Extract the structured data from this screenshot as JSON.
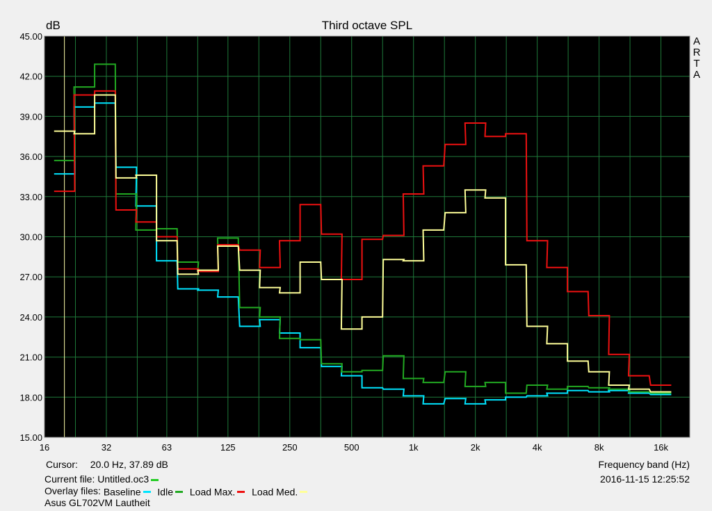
{
  "chart_data": {
    "type": "line",
    "title": "Third octave SPL",
    "ylabel": "dB",
    "xlabel": "Frequency band (Hz)",
    "ylim": [
      15,
      45
    ],
    "yticks": [
      "15.00",
      "18.00",
      "21.00",
      "24.00",
      "27.00",
      "30.00",
      "33.00",
      "36.00",
      "39.00",
      "42.00",
      "45.00"
    ],
    "xticks": [
      {
        "label": "16",
        "hz": 16
      },
      {
        "label": "32",
        "hz": 32
      },
      {
        "label": "63",
        "hz": 63
      },
      {
        "label": "125",
        "hz": 125
      },
      {
        "label": "250",
        "hz": 250
      },
      {
        "label": "500",
        "hz": 500
      },
      {
        "label": "1k",
        "hz": 1000
      },
      {
        "label": "2k",
        "hz": 2000
      },
      {
        "label": "4k",
        "hz": 4000
      },
      {
        "label": "8k",
        "hz": 8000
      },
      {
        "label": "16k",
        "hz": 16000
      }
    ],
    "grid": true,
    "x_scale": "log",
    "bands_hz": [
      20,
      25,
      31.5,
      40,
      50,
      63,
      80,
      100,
      125,
      160,
      200,
      250,
      315,
      400,
      500,
      630,
      800,
      1000,
      1250,
      1600,
      2000,
      2500,
      3150,
      4000,
      5000,
      6300,
      8000,
      10000,
      12500,
      16000
    ],
    "cursor_hz": 20,
    "series": [
      {
        "name": "Baseline",
        "color": "#00e5ff",
        "values": [
          34.7,
          39.7,
          40.0,
          35.2,
          32.3,
          28.2,
          26.1,
          26.0,
          25.5,
          23.3,
          23.8,
          22.8,
          21.7,
          20.3,
          19.6,
          18.7,
          18.6,
          18.1,
          17.5,
          17.9,
          17.5,
          17.8,
          18.0,
          18.1,
          18.3,
          18.5,
          18.4,
          18.5,
          18.3,
          18.2
        ]
      },
      {
        "name": "Idle",
        "color": "#22aa22",
        "values": [
          35.7,
          41.2,
          42.9,
          33.2,
          30.5,
          30.6,
          28.1,
          27.5,
          29.9,
          24.7,
          24.0,
          22.4,
          22.3,
          20.5,
          19.9,
          20.0,
          21.1,
          19.4,
          19.1,
          19.9,
          18.8,
          19.1,
          18.3,
          18.9,
          18.6,
          18.8,
          18.7,
          18.6,
          18.4,
          18.3
        ]
      },
      {
        "name": "Load Max.",
        "color": "#ee1111",
        "values": [
          33.4,
          40.6,
          40.9,
          32.0,
          31.1,
          30.0,
          27.6,
          27.4,
          29.4,
          29.0,
          27.7,
          29.7,
          32.4,
          30.2,
          26.8,
          29.8,
          30.1,
          33.2,
          35.3,
          36.9,
          38.5,
          37.5,
          37.7,
          29.7,
          27.7,
          25.9,
          24.1,
          21.2,
          19.6,
          18.9
        ]
      },
      {
        "name": "Load Med.",
        "color": "#ffff99",
        "values": [
          37.9,
          37.7,
          40.6,
          34.4,
          34.6,
          29.7,
          27.2,
          27.5,
          29.3,
          27.5,
          26.2,
          25.8,
          28.1,
          26.8,
          23.1,
          24.0,
          28.3,
          28.2,
          30.5,
          31.8,
          33.5,
          32.9,
          27.9,
          23.3,
          22.0,
          20.7,
          19.9,
          18.9,
          18.6,
          18.4
        ]
      }
    ]
  },
  "brand": [
    "A",
    "R",
    "T",
    "A"
  ],
  "info": {
    "cursor_label": "Cursor:",
    "cursor_value": "20.0 Hz, 37.89 dB",
    "freq_label": "Frequency band (Hz)",
    "current_file_label": "Current file:",
    "current_file": "Untitled.oc3",
    "current_file_color": "#22cc22",
    "overlay_label": "Overlay files:",
    "timestamp": "2016-11-15  12:25:52",
    "caption": "Asus GL702VM Lautheit"
  }
}
